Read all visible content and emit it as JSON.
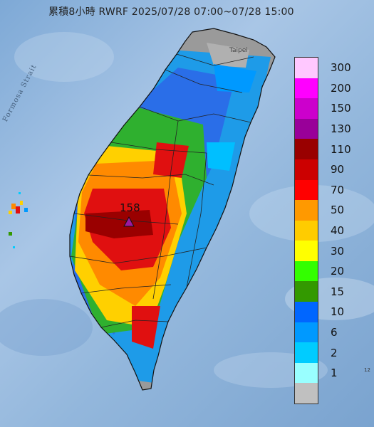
{
  "title": "累積8小時 RWRF 2025/07/28 07:00~07/28 15:00",
  "strait_label": "Formosa Strait",
  "city_label": "Taipei",
  "max_value": "158",
  "edge_label": "12",
  "colors": {
    "sea": "#93b7dc",
    "land_boundary": "#222222",
    "rain_low": "#9a9a9a",
    "rain_blue": "#2f8fe6",
    "rain_green": "#2fb02f",
    "rain_yellow": "#ffd000",
    "rain_orange": "#ff8a00",
    "rain_red": "#e01010",
    "rain_darkred": "#9a0000",
    "rain_purple": "#9b1aa0"
  },
  "legend": [
    {
      "label": "300",
      "color": "#ffc8ff"
    },
    {
      "label": "200",
      "color": "#ff00ff"
    },
    {
      "label": "150",
      "color": "#cc00cc"
    },
    {
      "label": "130",
      "color": "#990099"
    },
    {
      "label": "110",
      "color": "#990000"
    },
    {
      "label": "90",
      "color": "#cc0000"
    },
    {
      "label": "70",
      "color": "#ff0000"
    },
    {
      "label": "50",
      "color": "#ff9900"
    },
    {
      "label": "40",
      "color": "#ffcc00"
    },
    {
      "label": "30",
      "color": "#ffff00"
    },
    {
      "label": "20",
      "color": "#33ff00"
    },
    {
      "label": "15",
      "color": "#339900"
    },
    {
      "label": "10",
      "color": "#0066ff"
    },
    {
      "label": "6",
      "color": "#0099ff"
    },
    {
      "label": "2",
      "color": "#00ccff"
    },
    {
      "label": "1",
      "color": "#99ffff"
    },
    {
      "label": "",
      "color": "#c0c0c0"
    }
  ]
}
